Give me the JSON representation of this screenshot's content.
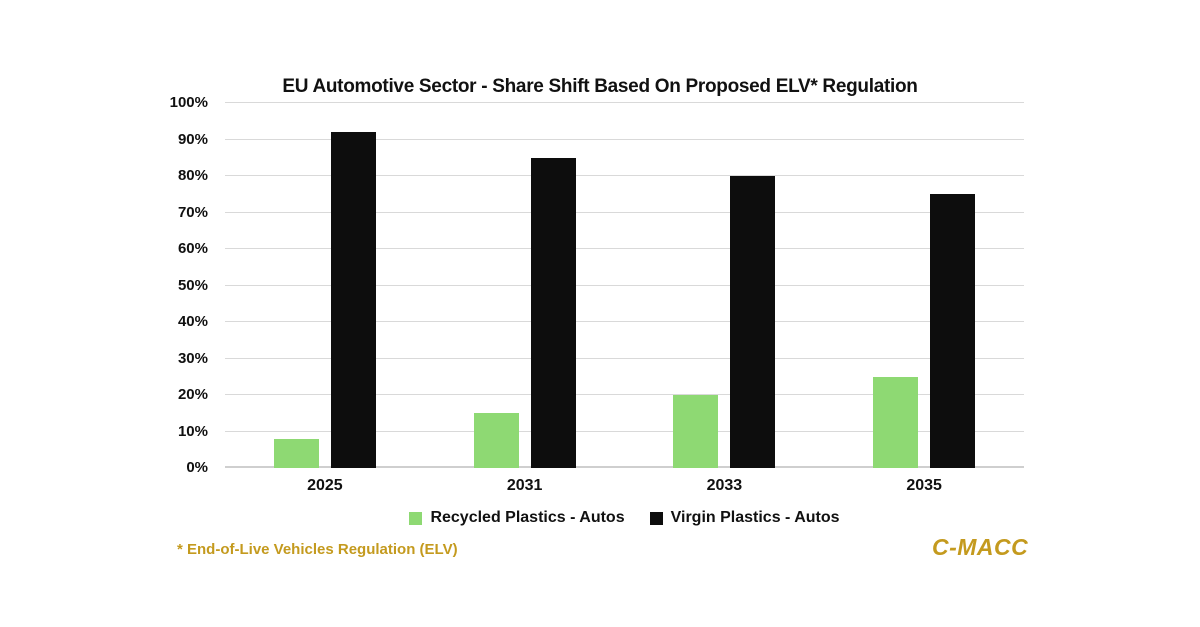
{
  "chart_data": {
    "type": "bar",
    "title": "EU Automotive Sector - Share Shift Based On Proposed ELV* Regulation",
    "categories": [
      "2025",
      "2031",
      "2033",
      "2035"
    ],
    "series": [
      {
        "name": "Recycled Plastics - Autos",
        "color": "#8ED973",
        "values": [
          8,
          15,
          20,
          25
        ]
      },
      {
        "name": "Virgin Plastics - Autos",
        "color": "#0D0D0D",
        "values": [
          92,
          85,
          80,
          75
        ]
      }
    ],
    "xlabel": "",
    "ylabel": "",
    "ylim": [
      0,
      100
    ],
    "ytick_step": 10,
    "ytick_labels": [
      "0%",
      "10%",
      "20%",
      "30%",
      "40%",
      "50%",
      "60%",
      "70%",
      "80%",
      "90%",
      "100%"
    ],
    "grid": true,
    "legend_position": "bottom"
  },
  "footnote": "* End-of-Live Vehicles Regulation (ELV)",
  "logo": "C-MACC",
  "colors": {
    "gridline": "#D9D9D9",
    "axis_line": "#CFCFCF",
    "text": "#111111",
    "gold": "#C49A1E",
    "background": "#FFFFFF"
  }
}
